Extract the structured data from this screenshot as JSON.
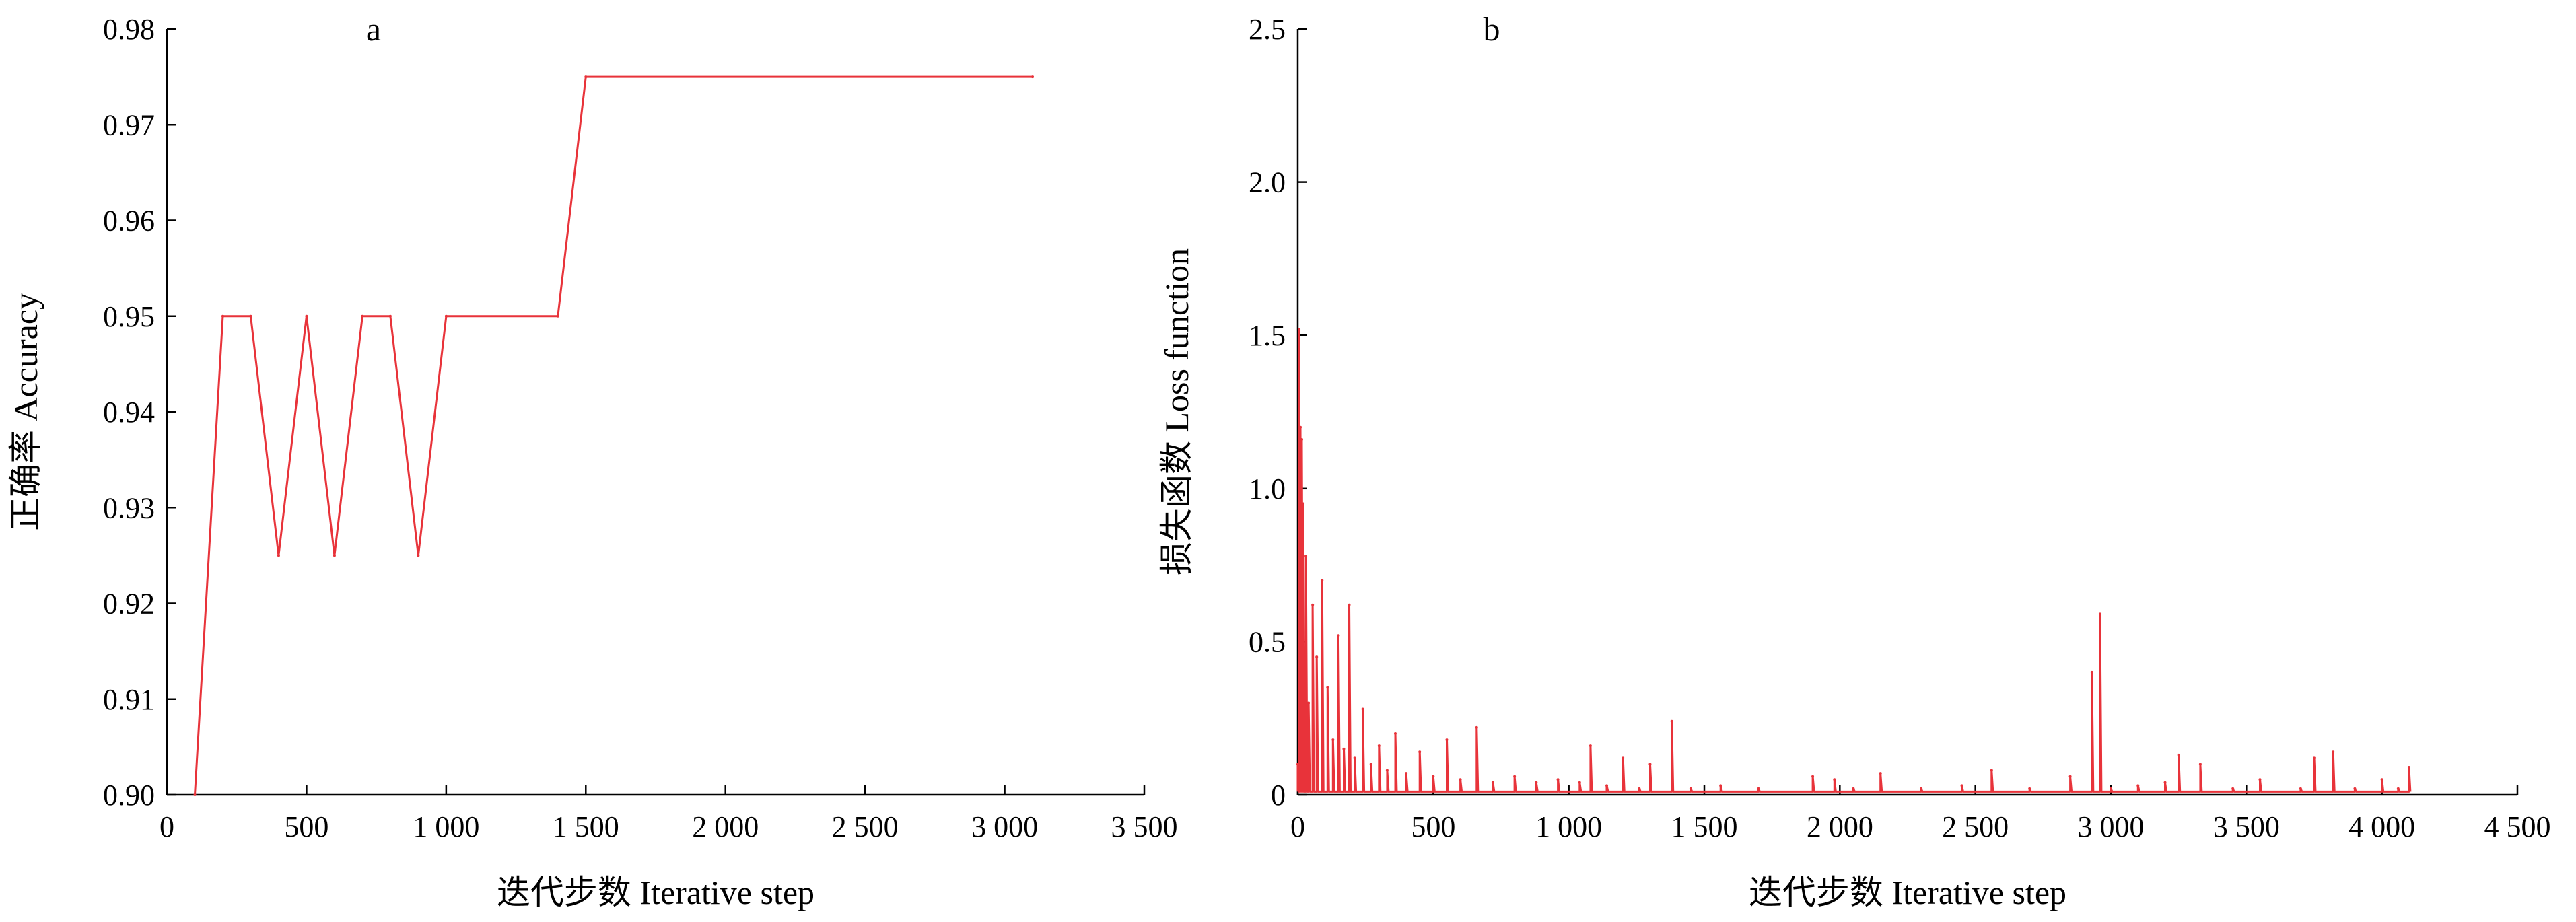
{
  "chart_data": [
    {
      "type": "line",
      "panel_label": "a",
      "xlabel": "迭代步数  Iterative step",
      "ylabel": "正确率  Accuracy",
      "xlim": [
        0,
        3500
      ],
      "ylim": [
        0.9,
        0.98
      ],
      "xticks": [
        0,
        500,
        1000,
        1500,
        2000,
        2500,
        3000,
        3500
      ],
      "xtick_labels": [
        "0",
        "500",
        "1 000",
        "1 500",
        "2 000",
        "2 500",
        "3 000",
        "3 500"
      ],
      "yticks": [
        0.9,
        0.91,
        0.92,
        0.93,
        0.94,
        0.95,
        0.96,
        0.97,
        0.98
      ],
      "ytick_labels": [
        "0.90",
        "0.91",
        "0.92",
        "0.93",
        "0.94",
        "0.95",
        "0.96",
        "0.97",
        "0.98"
      ],
      "color": "#e8333a",
      "grid": false,
      "series": [
        {
          "x": [
            100,
            200,
            300,
            400,
            500,
            600,
            700,
            800,
            900,
            1000,
            1400,
            1500,
            3100
          ],
          "y": [
            0.9,
            0.95,
            0.95,
            0.925,
            0.95,
            0.925,
            0.95,
            0.95,
            0.925,
            0.95,
            0.95,
            0.975,
            0.975
          ]
        }
      ]
    },
    {
      "type": "line",
      "panel_label": "b",
      "xlabel": "迭代步数  Iterative step",
      "ylabel": "损失函数  Loss function",
      "xlim": [
        0,
        4500
      ],
      "ylim": [
        0,
        2.5
      ],
      "xticks": [
        0,
        500,
        1000,
        1500,
        2000,
        2500,
        3000,
        3500,
        4000,
        4500
      ],
      "xtick_labels": [
        "0",
        "500",
        "1 000",
        "1 500",
        "2 000",
        "2 500",
        "3 000",
        "3 500",
        "4 000",
        "4 500"
      ],
      "yticks": [
        0,
        0.5,
        1.0,
        1.5,
        2.0,
        2.5
      ],
      "ytick_labels": [
        "0",
        "0.5",
        "1.0",
        "1.5",
        "2.0",
        "2.5"
      ],
      "color": "#e8333a",
      "grid": false,
      "series": [
        {
          "x": [
            0,
            5,
            10,
            15,
            20,
            30,
            40,
            55,
            70,
            90,
            110,
            130,
            150,
            170,
            190,
            210,
            240,
            270,
            300,
            330,
            360,
            400,
            450,
            500,
            550,
            600,
            660,
            720,
            800,
            880,
            960,
            1040,
            1080,
            1140,
            1200,
            1260,
            1300,
            1380,
            1450,
            1560,
            1700,
            1900,
            1980,
            2050,
            2150,
            2300,
            2450,
            2560,
            2700,
            2850,
            2930,
            2960,
            3000,
            3100,
            3200,
            3250,
            3330,
            3450,
            3550,
            3700,
            3750,
            3820,
            3900,
            4000,
            4060,
            4100
          ],
          "y": [
            0.1,
            1.52,
            1.2,
            1.16,
            0.95,
            0.78,
            0.3,
            0.62,
            0.45,
            0.7,
            0.35,
            0.18,
            0.52,
            0.15,
            0.62,
            0.12,
            0.28,
            0.1,
            0.16,
            0.08,
            0.2,
            0.07,
            0.14,
            0.06,
            0.18,
            0.05,
            0.22,
            0.04,
            0.06,
            0.04,
            0.05,
            0.04,
            0.16,
            0.03,
            0.12,
            0.02,
            0.1,
            0.24,
            0.02,
            0.03,
            0.02,
            0.06,
            0.05,
            0.02,
            0.07,
            0.02,
            0.03,
            0.08,
            0.02,
            0.06,
            0.4,
            0.59,
            0.02,
            0.03,
            0.04,
            0.13,
            0.1,
            0.02,
            0.05,
            0.02,
            0.12,
            0.14,
            0.02,
            0.05,
            0.02,
            0.09
          ]
        }
      ]
    }
  ]
}
